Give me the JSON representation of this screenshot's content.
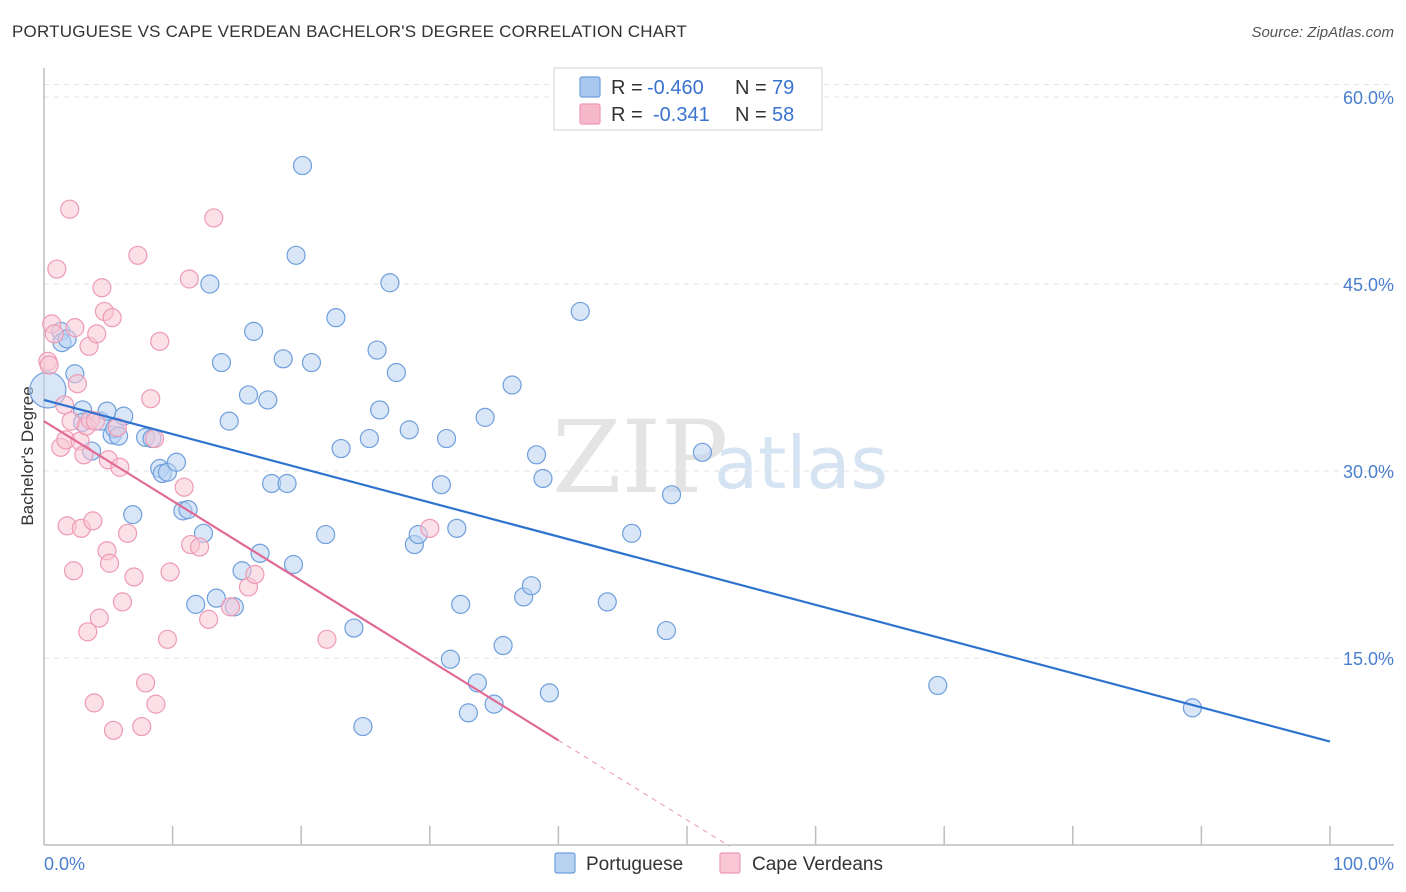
{
  "header": {
    "title": "PORTUGUESE VS CAPE VERDEAN BACHELOR'S DEGREE CORRELATION CHART",
    "source": "Source: ZipAtlas.com"
  },
  "legend": {
    "rows": [
      {
        "r_label": "R =",
        "r_value": "-0.460",
        "n_label": "N =",
        "n_value": "79",
        "color": "#a8c8f0"
      },
      {
        "r_label": "R =",
        "r_value": "-0.341",
        "n_label": "N =",
        "n_value": "58",
        "color": "#f6b8cb"
      }
    ]
  },
  "watermark": {
    "zip": "ZIP",
    "atlas": "atlas"
  },
  "chart_data": {
    "type": "scatter",
    "title": "PORTUGUESE VS CAPE VERDEAN BACHELOR'S DEGREE CORRELATION CHART",
    "ylabel": "Bachelor's Degree",
    "xlabel": "",
    "xlim": [
      0,
      100
    ],
    "ylim": [
      0,
      62
    ],
    "x_tick_labels": [
      "0.0%",
      "100.0%"
    ],
    "y_ticks": [
      15,
      30,
      45,
      60
    ],
    "y_tick_labels": [
      "15.0%",
      "30.0%",
      "45.0%",
      "60.0%"
    ],
    "grid": "horizontal dashed",
    "legend_position": "top-center",
    "series": [
      {
        "name": "Portuguese",
        "color": "#6f9fdc",
        "fill": "#b8d2f2",
        "trend": {
          "x0": 0,
          "y0": 35.7,
          "x1": 100,
          "y1": 8.3,
          "color": "#2f73d0"
        },
        "points": [
          [
            0.3,
            36.5
          ],
          [
            1.3,
            41.2
          ],
          [
            1.4,
            40.3
          ],
          [
            1.8,
            40.6
          ],
          [
            2.4,
            37.8
          ],
          [
            3.0,
            34.9
          ],
          [
            3.0,
            33.9
          ],
          [
            3.7,
            31.6
          ],
          [
            4.4,
            34.0
          ],
          [
            4.9,
            34.8
          ],
          [
            5.3,
            32.9
          ],
          [
            5.5,
            33.4
          ],
          [
            5.8,
            32.8
          ],
          [
            6.2,
            34.4
          ],
          [
            6.9,
            26.5
          ],
          [
            7.9,
            32.7
          ],
          [
            8.4,
            32.6
          ],
          [
            9.0,
            30.2
          ],
          [
            9.2,
            29.8
          ],
          [
            9.6,
            29.9
          ],
          [
            10.3,
            30.7
          ],
          [
            10.8,
            26.8
          ],
          [
            11.2,
            26.9
          ],
          [
            11.8,
            19.3
          ],
          [
            12.4,
            25.0
          ],
          [
            12.9,
            45.0
          ],
          [
            13.4,
            19.8
          ],
          [
            13.8,
            38.7
          ],
          [
            14.4,
            34.0
          ],
          [
            14.8,
            19.1
          ],
          [
            15.4,
            22.0
          ],
          [
            15.9,
            36.1
          ],
          [
            16.3,
            41.2
          ],
          [
            16.8,
            23.4
          ],
          [
            17.4,
            35.7
          ],
          [
            17.7,
            29.0
          ],
          [
            18.6,
            39.0
          ],
          [
            18.9,
            29.0
          ],
          [
            19.4,
            22.5
          ],
          [
            19.6,
            47.3
          ],
          [
            20.1,
            54.5
          ],
          [
            20.8,
            38.7
          ],
          [
            21.9,
            24.9
          ],
          [
            22.7,
            42.3
          ],
          [
            23.1,
            31.8
          ],
          [
            24.1,
            17.4
          ],
          [
            24.8,
            9.5
          ],
          [
            25.3,
            32.6
          ],
          [
            25.9,
            39.7
          ],
          [
            26.1,
            34.9
          ],
          [
            26.9,
            45.1
          ],
          [
            27.4,
            37.9
          ],
          [
            28.4,
            33.3
          ],
          [
            28.8,
            24.1
          ],
          [
            29.1,
            24.9
          ],
          [
            30.9,
            28.9
          ],
          [
            31.3,
            32.6
          ],
          [
            31.6,
            14.9
          ],
          [
            32.1,
            25.4
          ],
          [
            32.4,
            19.3
          ],
          [
            33.0,
            10.6
          ],
          [
            33.7,
            13.0
          ],
          [
            34.3,
            34.3
          ],
          [
            35.0,
            11.3
          ],
          [
            35.7,
            16.0
          ],
          [
            36.4,
            36.9
          ],
          [
            37.3,
            19.9
          ],
          [
            37.9,
            20.8
          ],
          [
            38.3,
            31.3
          ],
          [
            38.8,
            29.4
          ],
          [
            39.3,
            12.2
          ],
          [
            41.7,
            42.8
          ],
          [
            43.8,
            19.5
          ],
          [
            45.7,
            25.0
          ],
          [
            48.4,
            17.2
          ],
          [
            48.8,
            28.1
          ],
          [
            51.2,
            31.5
          ],
          [
            69.5,
            12.8
          ],
          [
            89.3,
            11.0
          ]
        ]
      },
      {
        "name": "Cape Verdeans",
        "color": "#ee9ab4",
        "fill": "#f8c6d5",
        "trend": {
          "x0": 0,
          "y0": 34.0,
          "x1": 40.0,
          "y1": 8.4,
          "dash_x1": 53.3,
          "dash_y1": -0.1,
          "color": "#e06a95"
        },
        "points": [
          [
            0.3,
            38.8
          ],
          [
            0.4,
            38.5
          ],
          [
            0.6,
            41.8
          ],
          [
            0.8,
            41.0
          ],
          [
            1.0,
            46.2
          ],
          [
            1.3,
            31.9
          ],
          [
            1.6,
            35.3
          ],
          [
            1.7,
            32.5
          ],
          [
            1.8,
            25.6
          ],
          [
            2.0,
            51.0
          ],
          [
            2.1,
            34.0
          ],
          [
            2.3,
            22.0
          ],
          [
            2.4,
            41.5
          ],
          [
            2.6,
            37.0
          ],
          [
            2.8,
            32.4
          ],
          [
            2.9,
            25.4
          ],
          [
            3.1,
            31.3
          ],
          [
            3.3,
            33.6
          ],
          [
            3.4,
            17.1
          ],
          [
            3.5,
            40.0
          ],
          [
            3.6,
            34.1
          ],
          [
            3.8,
            26.0
          ],
          [
            3.9,
            11.4
          ],
          [
            4.1,
            41.0
          ],
          [
            4.3,
            18.2
          ],
          [
            4.5,
            44.7
          ],
          [
            4.7,
            42.8
          ],
          [
            4.9,
            23.6
          ],
          [
            5.0,
            30.9
          ],
          [
            5.1,
            22.6
          ],
          [
            5.3,
            42.3
          ],
          [
            5.4,
            9.2
          ],
          [
            5.7,
            33.5
          ],
          [
            5.9,
            30.3
          ],
          [
            6.1,
            19.5
          ],
          [
            6.5,
            25.0
          ],
          [
            7.0,
            21.5
          ],
          [
            7.3,
            47.3
          ],
          [
            7.6,
            9.5
          ],
          [
            7.9,
            13.0
          ],
          [
            8.3,
            35.8
          ],
          [
            8.7,
            11.3
          ],
          [
            9.0,
            40.4
          ],
          [
            9.6,
            16.5
          ],
          [
            9.8,
            21.9
          ],
          [
            10.9,
            28.7
          ],
          [
            11.3,
            45.4
          ],
          [
            11.4,
            24.1
          ],
          [
            12.1,
            23.9
          ],
          [
            12.8,
            18.1
          ],
          [
            13.2,
            50.3
          ],
          [
            14.5,
            19.1
          ],
          [
            15.9,
            20.7
          ],
          [
            16.4,
            21.7
          ],
          [
            8.6,
            32.6
          ],
          [
            22.0,
            16.5
          ],
          [
            30.0,
            25.4
          ],
          [
            4.0,
            34.0
          ]
        ]
      }
    ]
  },
  "bottom_legend": [
    {
      "label": "Portuguese",
      "color": "#b8d2f2"
    },
    {
      "label": "Cape Verdeans",
      "color": "#f8c6d5"
    }
  ]
}
